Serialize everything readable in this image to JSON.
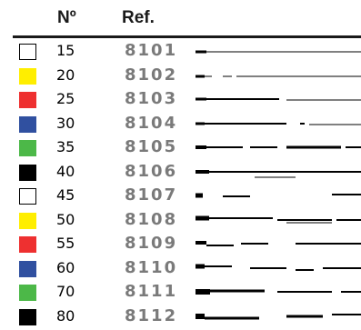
{
  "header": {
    "no_label": "Nº",
    "ref_label": "Ref."
  },
  "rows": [
    {
      "no": "15",
      "ref": "8101",
      "color": "#ffffff"
    },
    {
      "no": "20",
      "ref": "8102",
      "color": "#ffee00"
    },
    {
      "no": "25",
      "ref": "8103",
      "color": "#ee3030"
    },
    {
      "no": "30",
      "ref": "8104",
      "color": "#3050a0"
    },
    {
      "no": "35",
      "ref": "8105",
      "color": "#4cb848"
    },
    {
      "no": "40",
      "ref": "8106",
      "color": "#000000"
    },
    {
      "no": "45",
      "ref": "8107",
      "color": "#ffffff"
    },
    {
      "no": "50",
      "ref": "8108",
      "color": "#ffee00"
    },
    {
      "no": "55",
      "ref": "8109",
      "color": "#ee3030"
    },
    {
      "no": "60",
      "ref": "8110",
      "color": "#3050a0"
    },
    {
      "no": "70",
      "ref": "8111",
      "color": "#4cb848"
    },
    {
      "no": "80",
      "ref": "8112",
      "color": "#000000"
    }
  ]
}
